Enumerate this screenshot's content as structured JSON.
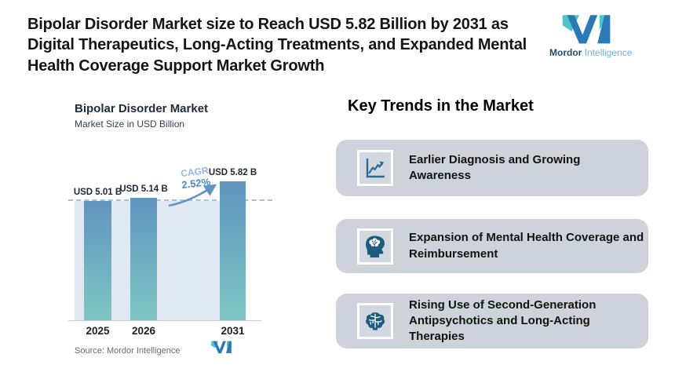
{
  "page": {
    "title": "Bipolar Disorder Market size to Reach USD 5.82 Billion by 2031 as Digital Therapeutics, Long-Acting Treatments, and Expanded Mental Health Coverage Support Market Growth"
  },
  "brand": {
    "name_primary": "Mordor",
    "name_secondary": "Intelligence",
    "teal": "#48C6C8",
    "blue": "#2B7AB5"
  },
  "chart": {
    "title": "Bipolar Disorder Market",
    "subtitle": "Market Size in USD Billion",
    "cagr_label": "CAGR",
    "cagr_value": "2.52%",
    "source": "Source: Mordor Intelligence"
  },
  "chart_data": {
    "type": "bar",
    "categories": [
      "2025",
      "2026",
      "2031"
    ],
    "values": [
      5.01,
      5.14,
      5.82
    ],
    "value_labels": [
      "USD 5.01 B",
      "USD 5.14 B",
      "USD 5.82 B"
    ],
    "title": "Bipolar Disorder Market",
    "subtitle": "Market Size in USD Billion",
    "ylabel": "Market Size in USD Billion",
    "ylim": [
      0,
      6.5
    ],
    "grid": false,
    "annotations": [
      "CAGR 2.52%",
      "dashed reference line at 5.01 level"
    ],
    "bar_gradient_top": "#6094BE",
    "bar_gradient_bottom": "#7CC3C4",
    "plot_background": "#E0E9F1"
  },
  "trends": {
    "heading": "Key Trends in the Market",
    "card_background": "#CED3DB",
    "icon_color": "#1E5B7E",
    "items": [
      {
        "icon": "line-chart-icon",
        "label": "Earlier Diagnosis and Growing Awareness"
      },
      {
        "icon": "head-brain-icon",
        "label": "Expansion of Mental Health Coverage and Reimbursement"
      },
      {
        "icon": "brain-icon",
        "label": "Rising Use of Second-Generation Antipsychotics and Long-Acting Therapies"
      }
    ]
  }
}
